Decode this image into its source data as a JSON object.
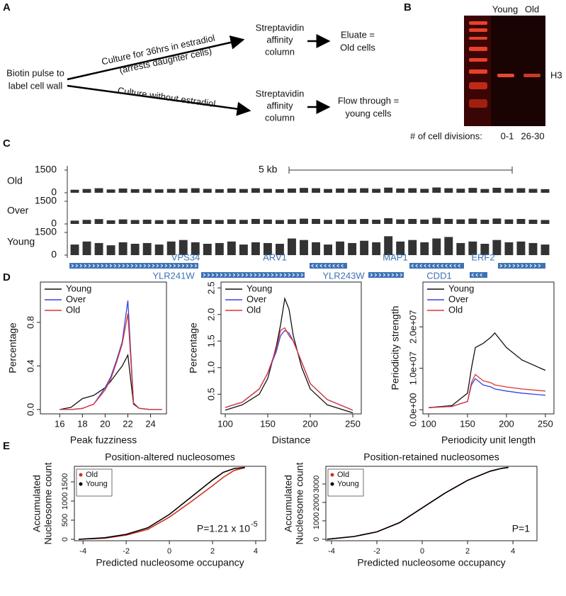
{
  "panel_labels": [
    "A",
    "B",
    "C",
    "D",
    "E"
  ],
  "panel_a": {
    "source": [
      "Biotin pulse to",
      "label cell wall"
    ],
    "upper_path": [
      "Culture for 36hrs in estradiol",
      "(arrests daughter cells)"
    ],
    "lower_path": "Culture without estradiol",
    "upper_column": [
      "Streptavidin",
      "affinity",
      "column"
    ],
    "lower_column": [
      "Streptavidin",
      "affinity",
      "column"
    ],
    "upper_result": [
      "Eluate =",
      "Old cells"
    ],
    "lower_result": [
      "Flow through =",
      "young cells"
    ]
  },
  "panel_b": {
    "lanes": [
      "Young",
      "Old"
    ],
    "band": "H3",
    "divisions_label": "# of cell divisions:",
    "divisions": [
      "0-1",
      "26-30"
    ]
  },
  "chart_data": [
    {
      "type": "track",
      "scale_bar": "5 kb",
      "color": "#333333",
      "ylim": [
        0,
        1500
      ],
      "yticks": [
        0,
        1500
      ],
      "genes": [
        "VPS34",
        "YLR241W",
        "ARV1",
        "YLR243W",
        "MAP1",
        "CDD1",
        "ERF2"
      ],
      "gene_color": "#3d72b4",
      "series": [
        {
          "name": "Old",
          "values": [
            200,
            250,
            300,
            220,
            280,
            240,
            260,
            230,
            250,
            270,
            300,
            260,
            240,
            280,
            250,
            300,
            260,
            240,
            280,
            320,
            300,
            250,
            280,
            270,
            300,
            260,
            340,
            280,
            300,
            260,
            350,
            300,
            270,
            320,
            250,
            330,
            280,
            300,
            260,
            240
          ]
        },
        {
          "name": "Over",
          "values": [
            220,
            270,
            320,
            240,
            300,
            260,
            280,
            250,
            270,
            290,
            320,
            280,
            260,
            300,
            270,
            330,
            290,
            260,
            300,
            350,
            330,
            270,
            300,
            290,
            330,
            280,
            380,
            300,
            330,
            290,
            400,
            330,
            300,
            350,
            280,
            360,
            300,
            330,
            280,
            260
          ]
        },
        {
          "name": "Young",
          "values": [
            700,
            900,
            800,
            650,
            850,
            750,
            800,
            700,
            900,
            1000,
            850,
            750,
            800,
            900,
            700,
            850,
            800,
            750,
            1100,
            1000,
            850,
            700,
            900,
            800,
            950,
            850,
            1250,
            900,
            1000,
            850,
            1100,
            1200,
            800,
            900,
            750,
            1000,
            850,
            900,
            800,
            700
          ]
        }
      ]
    },
    {
      "type": "line",
      "xlabel": "Peak fuzziness",
      "ylabel": [
        "Percentage"
      ],
      "legend": "top-left",
      "xlim": [
        14.3,
        25.4
      ],
      "ylim": [
        -0.04,
        1.17
      ],
      "xticks": [
        16,
        18,
        20,
        22,
        24
      ],
      "yticks": [
        {
          "value": 0,
          "label": "0.0"
        },
        0.4,
        0.8
      ],
      "x": [
        16,
        17,
        18,
        19,
        20,
        20.5,
        21,
        21.5,
        22,
        22.5,
        23,
        24,
        25
      ],
      "series": [
        {
          "name": "Young",
          "color": "#111111",
          "values": [
            0.0,
            0.02,
            0.1,
            0.13,
            0.2,
            0.26,
            0.33,
            0.4,
            0.5,
            0.05,
            0.01,
            0,
            0
          ]
        },
        {
          "name": "Over",
          "color": "#3344dd",
          "values": [
            0,
            0,
            0.01,
            0.05,
            0.2,
            0.3,
            0.45,
            0.62,
            1.0,
            0.06,
            0.01,
            0,
            0
          ]
        },
        {
          "name": "Old",
          "color": "#dd3333",
          "values": [
            0,
            0,
            0.01,
            0.05,
            0.18,
            0.28,
            0.43,
            0.6,
            0.88,
            0.06,
            0.01,
            0,
            0
          ]
        }
      ]
    },
    {
      "type": "line",
      "xlabel": "Distance",
      "ylabel": [
        "Percentage"
      ],
      "legend": "top-left",
      "xlim": [
        95,
        260
      ],
      "ylim": [
        0.13,
        2.61
      ],
      "xticks": [
        100,
        150,
        200,
        250
      ],
      "yticks": [
        0.5,
        {
          "value": 1,
          "label": "1.0"
        },
        1.5,
        {
          "value": 2,
          "label": "2.0"
        },
        2.5
      ],
      "x": [
        100,
        120,
        140,
        150,
        160,
        165,
        170,
        175,
        180,
        190,
        200,
        220,
        250
      ],
      "series": [
        {
          "name": "Young",
          "color": "#111111",
          "values": [
            0.2,
            0.3,
            0.5,
            0.8,
            1.4,
            1.8,
            2.3,
            2.1,
            1.6,
            1.0,
            0.6,
            0.3,
            0.15
          ]
        },
        {
          "name": "Over",
          "color": "#3344dd",
          "values": [
            0.25,
            0.35,
            0.6,
            0.9,
            1.3,
            1.6,
            1.7,
            1.65,
            1.5,
            1.1,
            0.7,
            0.4,
            0.2
          ]
        },
        {
          "name": "Old",
          "color": "#dd3333",
          "values": [
            0.25,
            0.35,
            0.6,
            0.9,
            1.35,
            1.7,
            1.75,
            1.6,
            1.5,
            1.1,
            0.7,
            0.4,
            0.2
          ]
        }
      ]
    },
    {
      "type": "line",
      "xlabel": "Periodicity unit length",
      "ylabel": [
        "Periodicity strength"
      ],
      "legend": "top-left",
      "xlim": [
        92.7,
        261
      ],
      "ylim": [
        -1000000,
        30800000
      ],
      "xticks": [
        100,
        150,
        200,
        250
      ],
      "yticks": [
        {
          "value": 0,
          "label": "0.0e+00"
        },
        {
          "value": 10000000,
          "label": "1.0e+07"
        },
        {
          "value": 20000000,
          "label": "2.0e+07"
        }
      ],
      "x": [
        100,
        130,
        150,
        155,
        160,
        170,
        180,
        185,
        200,
        220,
        250
      ],
      "series": [
        {
          "name": "Young",
          "color": "#111111",
          "values": [
            500000,
            1000000,
            4000000,
            10000000,
            15000000,
            16000000,
            17500000,
            18500000,
            15000000,
            12000000,
            9500000
          ]
        },
        {
          "name": "Over",
          "color": "#3344dd",
          "values": [
            500000,
            800000,
            2000000,
            6000000,
            7500000,
            6000000,
            5500000,
            5000000,
            4500000,
            4000000,
            3500000
          ]
        },
        {
          "name": "Old",
          "color": "#dd3333",
          "values": [
            500000,
            800000,
            2000000,
            6500000,
            8500000,
            7000000,
            6500000,
            6000000,
            5500000,
            5000000,
            4500000
          ]
        }
      ]
    },
    {
      "type": "cdf",
      "title": "Position-altered nucleosomes",
      "xlabel": "Predicted nucleosome occupancy",
      "ylabel": [
        "Accumulated",
        "Nucleosome count"
      ],
      "legend": "top-left",
      "annotation": "P=1.21 x 10",
      "annotation_exponent": "-5",
      "xlim": [
        -4.4,
        4.46
      ],
      "ylim": [
        -37,
        1907
      ],
      "xticks": [
        -4,
        -2,
        0,
        2,
        4
      ],
      "yticks": [
        0,
        500,
        1000,
        1500
      ],
      "x": [
        -4.2,
        -3,
        -2,
        -1,
        0,
        1,
        2,
        2.5,
        3,
        3.5
      ],
      "series": [
        {
          "name": "Old",
          "color": "#cc3322",
          "values": [
            0,
            30,
            110,
            260,
            580,
            980,
            1400,
            1620,
            1800,
            1870
          ]
        },
        {
          "name": "Young",
          "color": "#000000",
          "values": [
            0,
            40,
            130,
            300,
            650,
            1100,
            1550,
            1750,
            1850,
            1880
          ]
        }
      ]
    },
    {
      "type": "cdf",
      "title": "Position-retained nucleosomes",
      "xlabel": "Predicted nucleosome occupancy",
      "ylabel": [
        "Accumulated",
        "Nucleosome count"
      ],
      "legend": "top-left",
      "annotation": "P=1",
      "xlim": [
        -4.25,
        5.06
      ],
      "ylim": [
        -80,
        3960
      ],
      "xticks": [
        -4,
        -2,
        0,
        2,
        4
      ],
      "yticks": [
        0,
        1000,
        2000,
        3000
      ],
      "x": [
        -4.2,
        -3,
        -2,
        -1,
        0,
        1,
        2,
        3,
        3.5,
        3.8
      ],
      "series": [
        {
          "name": "Old",
          "color": "#cc3322",
          "values": [
            0,
            150,
            400,
            900,
            1700,
            2500,
            3200,
            3700,
            3850,
            3900
          ]
        },
        {
          "name": "Young",
          "color": "#000000",
          "values": [
            0,
            150,
            400,
            900,
            1700,
            2500,
            3200,
            3700,
            3850,
            3900
          ]
        }
      ]
    }
  ]
}
